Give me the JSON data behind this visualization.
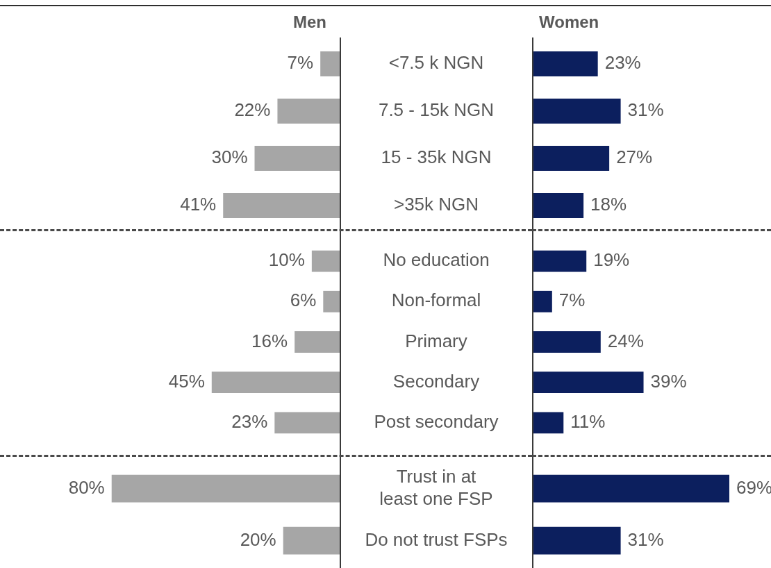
{
  "chart_data": [
    {
      "type": "bar",
      "orientation": "horizontal",
      "tick_labels": "y",
      "categories": [
        "<7.5 k NGN",
        "7.5 - 15k NGN",
        "15 - 35k NGN",
        ">35k NGN"
      ],
      "series": [
        {
          "name": "Men",
          "color": "#a6a6a6",
          "values": [
            7,
            22,
            30,
            41
          ],
          "value_labels": [
            "7%",
            "22%",
            "30%",
            "41%"
          ]
        }
      ]
    },
    {
      "type": "bar",
      "orientation": "horizontal",
      "tick_labels": false,
      "categories": [
        null,
        null,
        null,
        null
      ],
      "series": [
        {
          "name": "Women",
          "color": "#0c1f5e",
          "values": [
            23,
            31,
            27,
            18
          ],
          "value_labels": [
            "23%",
            "31%",
            "27%",
            "18%"
          ]
        }
      ]
    },
    {
      "type": "bar",
      "orientation": "horizontal",
      "tick_labels": "y",
      "categories": [
        "No education",
        "Non-formal",
        "Primary",
        "Secondary",
        "Post secondary"
      ],
      "series": [
        {
          "color": "#a6a6a6",
          "values": [
            10,
            6,
            16,
            45,
            23
          ],
          "value_labels": [
            "10%",
            "6%",
            "16%",
            "45%",
            "23%"
          ]
        }
      ]
    },
    {
      "type": "bar",
      "orientation": "horizontal",
      "tick_labels": false,
      "categories": [
        null,
        null,
        null,
        null,
        null
      ],
      "series": [
        {
          "color": "#0c1f5e",
          "values": [
            19,
            7,
            24,
            39,
            11
          ],
          "value_labels": [
            "19%",
            "7%",
            "24%",
            "39%",
            "11%"
          ]
        }
      ]
    },
    {
      "type": "bar",
      "orientation": "horizontal",
      "tick_labels": "y",
      "categories": [
        "Trust in at least one FSP",
        "Do not trust FSPs"
      ],
      "series": [
        {
          "color": "#a6a6a6",
          "values": [
            80,
            20
          ],
          "value_labels": [
            "80%",
            "20%"
          ]
        }
      ]
    },
    {
      "type": "bar",
      "orientation": "horizontal",
      "tick_labels": false,
      "categories": [
        null,
        null
      ],
      "series": [
        {
          "color": "#0c1f5e",
          "values": [
            69,
            31
          ],
          "value_labels": [
            "69%",
            "31%"
          ]
        }
      ]
    }
  ]
}
